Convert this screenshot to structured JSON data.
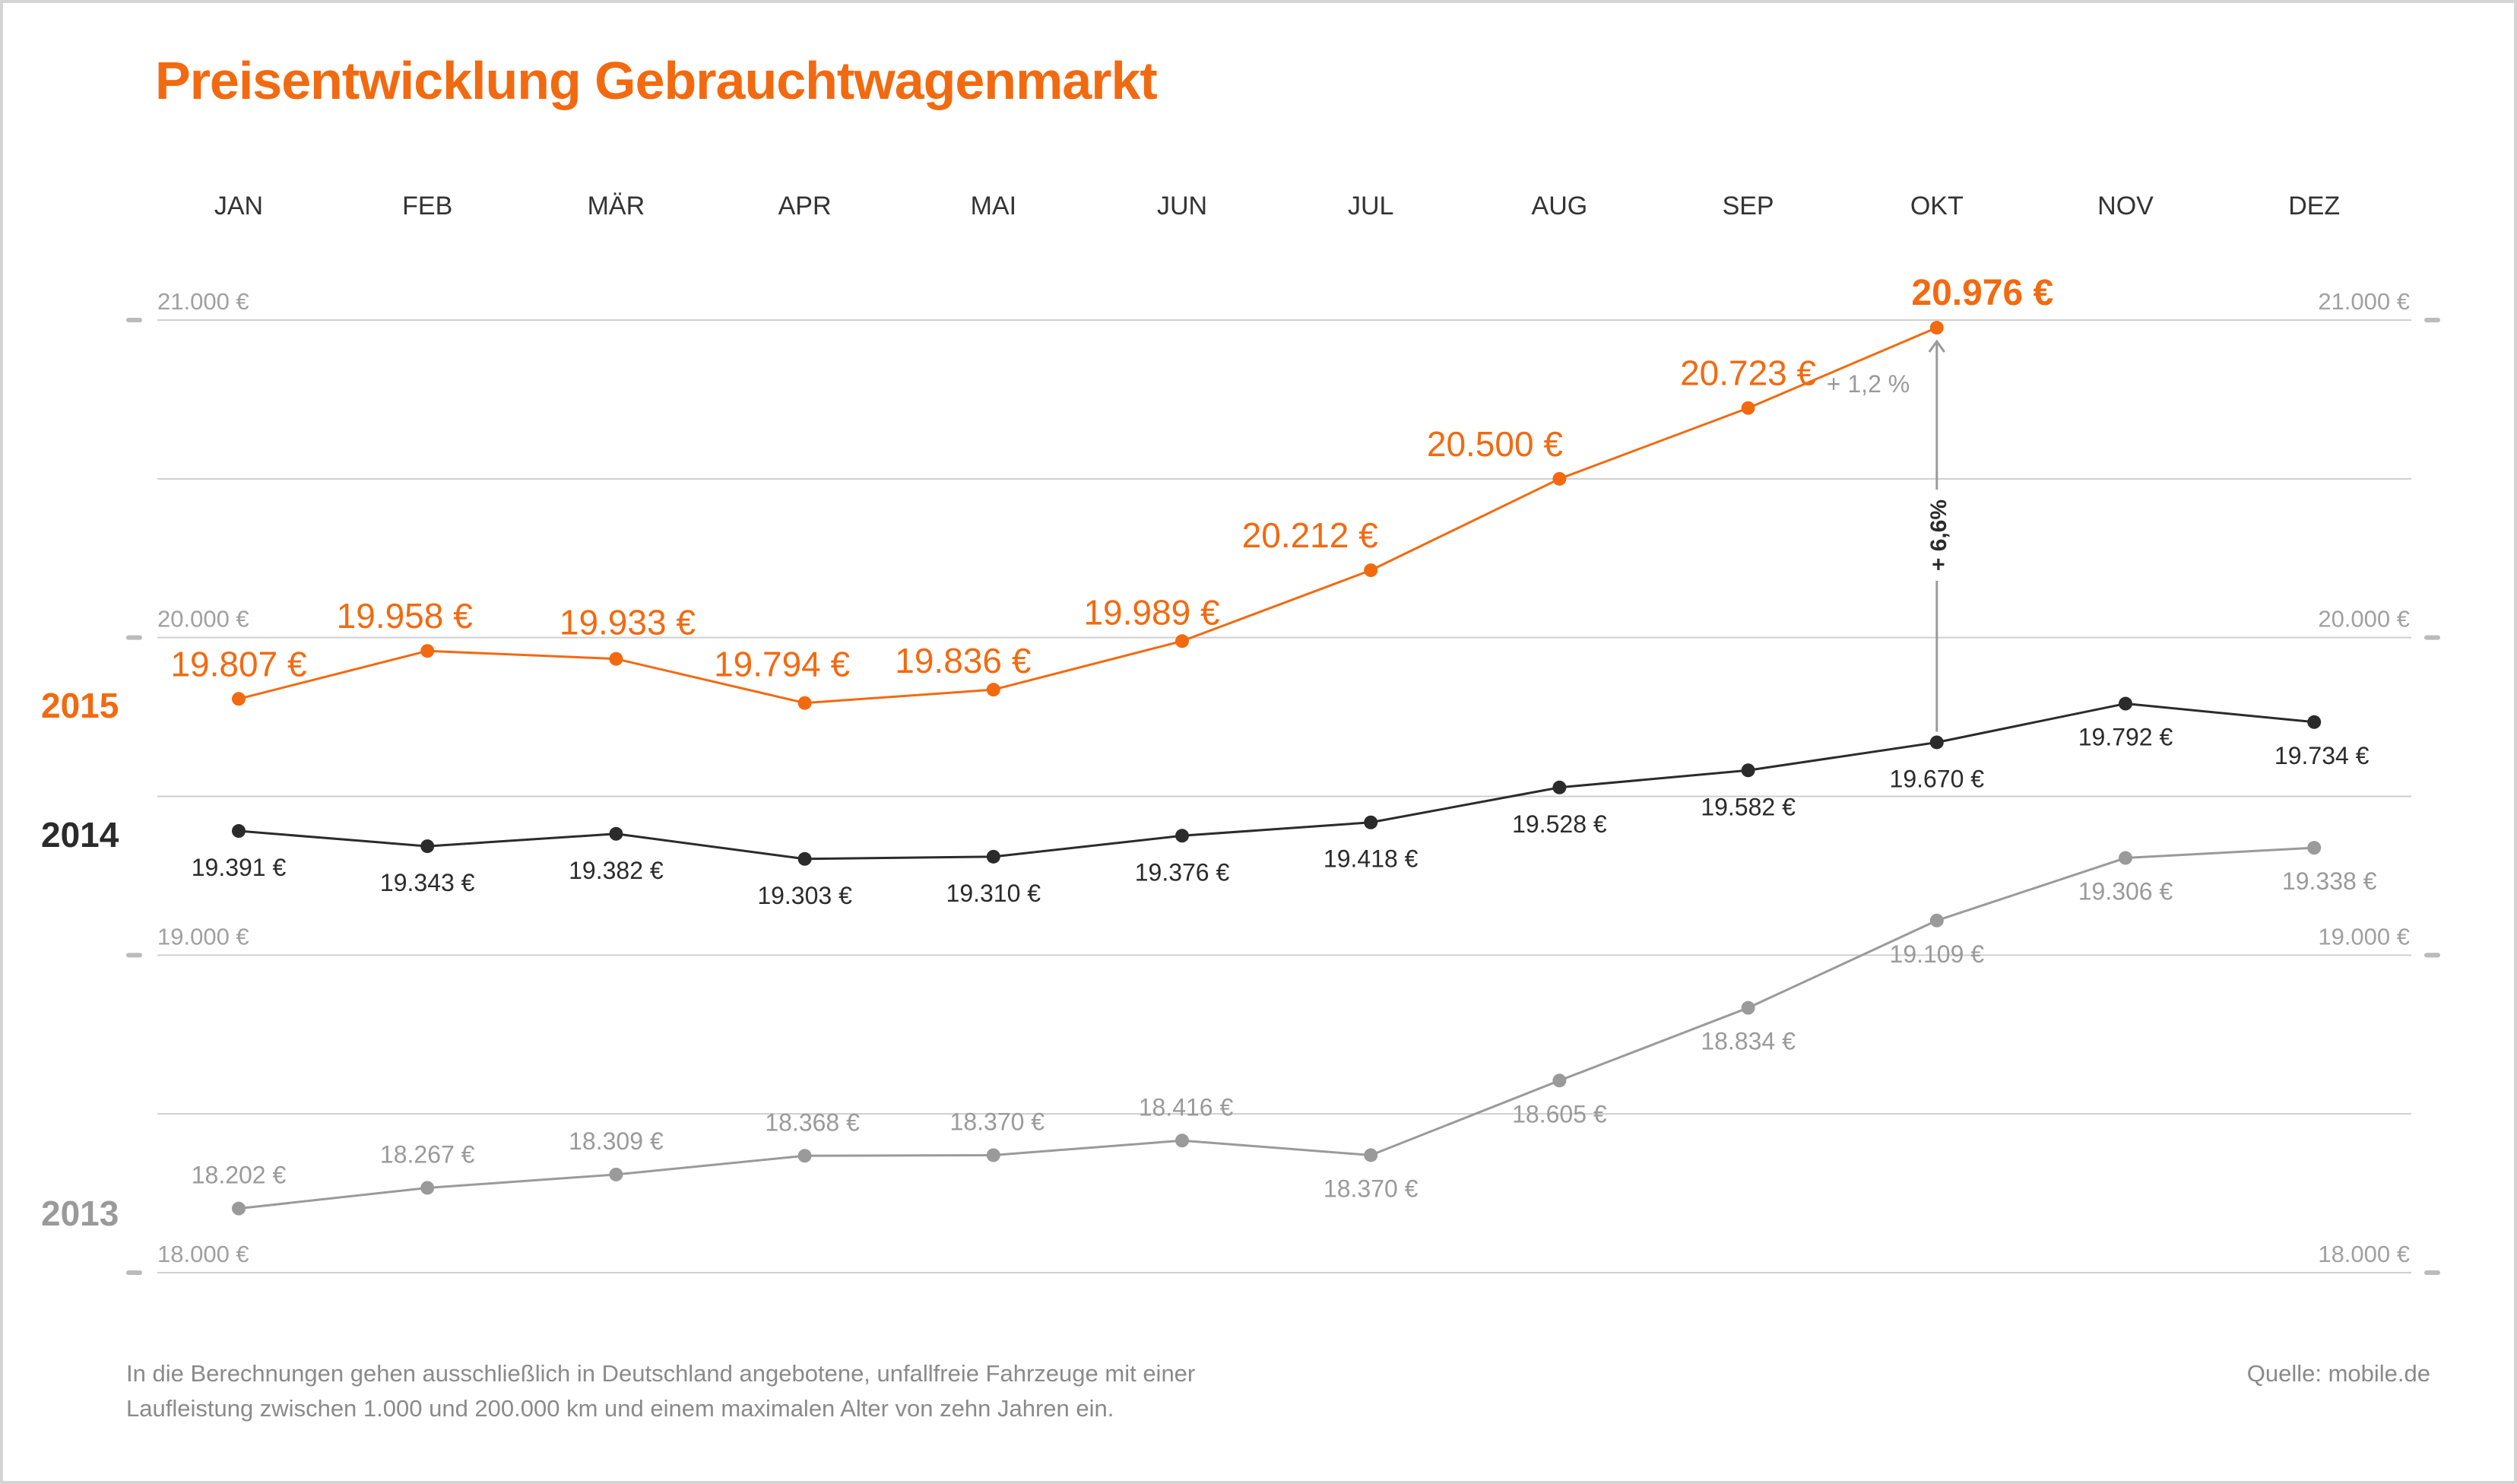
{
  "title": "Preisentwicklung Gebrauchtwagenmarkt",
  "footnote_line1": "In die Berechnungen gehen ausschließlich in Deutschland angebotene, unfallfreie Fahrzeuge mit einer",
  "footnote_line2": "Laufleistung zwischen 1.000 und 200.000 km und einem maximalen Alter von zehn Jahren ein.",
  "source": "Quelle: mobile.de",
  "colors": {
    "s2015": "#f26a10",
    "s2014": "#2b2b2b",
    "s2013": "#9a9a9a",
    "grid": "#cfcfcf",
    "axis_text": "#a0a0a0"
  },
  "chart_data": {
    "type": "line",
    "title": "Preisentwicklung Gebrauchtwagenmarkt",
    "xlabel": "",
    "ylabel": "",
    "categories": [
      "JAN",
      "FEB",
      "MÄR",
      "APR",
      "MAI",
      "JUN",
      "JUL",
      "AUG",
      "SEP",
      "OKT",
      "NOV",
      "DEZ"
    ],
    "ylim": [
      18000,
      21000
    ],
    "y_ticks": [
      18000,
      18500,
      19000,
      19500,
      20000,
      20500,
      21000
    ],
    "y_tick_labels": [
      "18.000 €",
      "",
      "19.000 €",
      "",
      "20.000 €",
      "",
      "21.000 €"
    ],
    "grid": true,
    "series": [
      {
        "name": "2015",
        "color": "#f26a10",
        "values": [
          19807,
          19958,
          19933,
          19794,
          19836,
          19989,
          20212,
          20500,
          20723,
          20976,
          null,
          null
        ],
        "labels": [
          "19.807 €",
          "19.958 €",
          "19.933 €",
          "19.794 €",
          "19.836 €",
          "19.989 €",
          "20.212 €",
          "20.500 €",
          "20.723 €",
          "20.976 €",
          "",
          ""
        ]
      },
      {
        "name": "2014",
        "color": "#2b2b2b",
        "values": [
          19391,
          19343,
          19382,
          19303,
          19310,
          19376,
          19418,
          19528,
          19582,
          19670,
          19792,
          19734
        ],
        "labels": [
          "19.391 €",
          "19.343 €",
          "19.382 €",
          "19.303 €",
          "19.310 €",
          "19.376 €",
          "19.418 €",
          "19.528 €",
          "19.582 €",
          "19.670 €",
          "19.792 €",
          "19.734 €"
        ]
      },
      {
        "name": "2013",
        "color": "#9a9a9a",
        "values": [
          18202,
          18267,
          18309,
          18368,
          18370,
          18416,
          18370,
          18605,
          18834,
          19109,
          19306,
          19338
        ],
        "labels": [
          "18.202 €",
          "18.267 €",
          "18.309 €",
          "18.368 €",
          "18.370 €",
          "18.416 €",
          "18.370 €",
          "18.605 €",
          "18.834 €",
          "19.109 €",
          "19.306 €",
          "19.338 €"
        ]
      }
    ],
    "annotations": [
      {
        "text": "+ 1,2 %",
        "month": "OKT"
      },
      {
        "text": "+ 6,6%",
        "month": "OKT"
      }
    ]
  }
}
